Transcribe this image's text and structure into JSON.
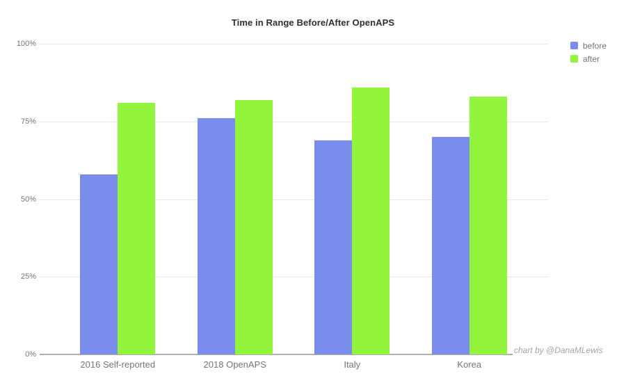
{
  "chart_data": {
    "type": "bar",
    "title": "Time in Range Before/After OpenAPS",
    "categories": [
      "2016 Self-reported",
      "2018 OpenAPS",
      "Italy",
      "Korea"
    ],
    "series": [
      {
        "name": "before",
        "color": "#7a8cec",
        "values": [
          58,
          76,
          69,
          70
        ]
      },
      {
        "name": "after",
        "color": "#92f43c",
        "values": [
          81,
          82,
          86,
          83
        ]
      }
    ],
    "xlabel": "",
    "ylabel": "",
    "ylim": [
      0,
      100
    ],
    "yticks": [
      0,
      25,
      50,
      75,
      100
    ],
    "ytick_labels": [
      "0%",
      "25%",
      "50%",
      "75%",
      "100%"
    ],
    "grid": true,
    "legend_position": "top-right",
    "annotations": [
      "chart by @DanaMLewis"
    ]
  },
  "style": {
    "gridline_color": "#e8e8e8",
    "axis_line_color": "#aeaeae",
    "label_color": "#757575",
    "title_color": "#2e2e2e",
    "attribution_color": "#a3a3a3"
  }
}
